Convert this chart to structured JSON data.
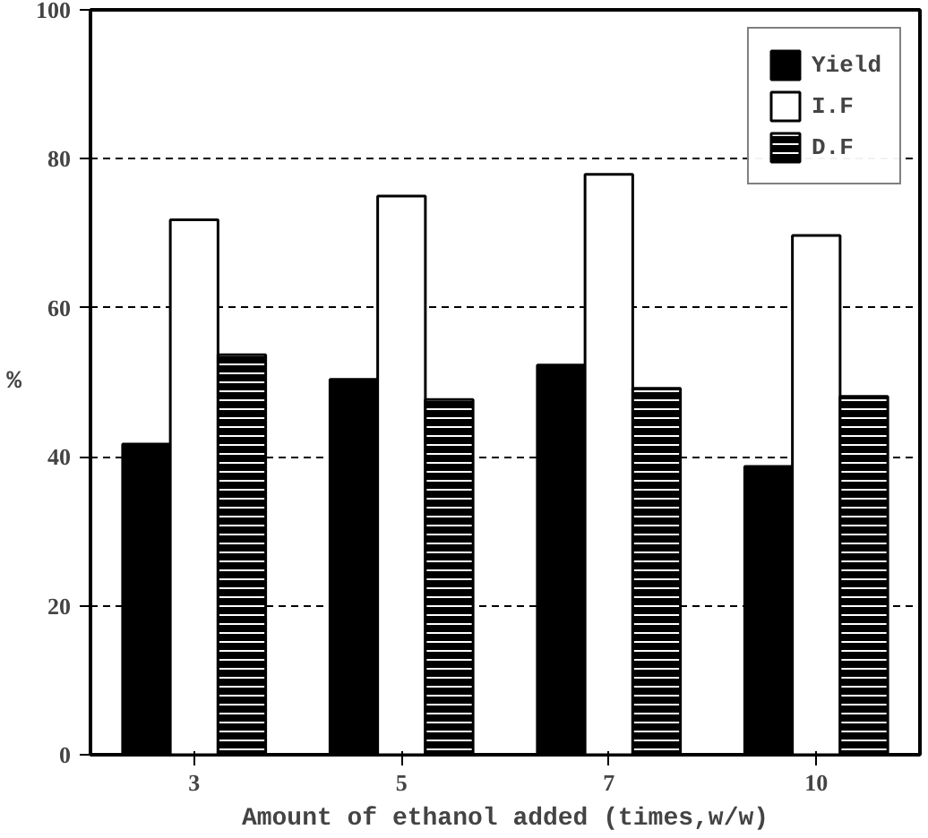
{
  "chart_data": {
    "type": "bar",
    "xlabel": "Amount of ethanol added (times,w/w)",
    "ylabel": "%",
    "categories": [
      "3",
      "5",
      "7",
      "10"
    ],
    "series": [
      {
        "name": "Yield",
        "color": "#000000",
        "values": [
          41.7,
          50.4,
          52.3,
          38.7
        ]
      },
      {
        "name": "I.F",
        "color": "#ffffff",
        "values": [
          71.8,
          75.0,
          77.9,
          69.7
        ]
      },
      {
        "name": "D.F",
        "color": "#000000",
        "values": [
          53.7,
          47.7,
          49.2,
          48.1
        ]
      }
    ],
    "ylim": [
      0,
      100
    ],
    "yticks": [
      0,
      20,
      40,
      60,
      80,
      100
    ],
    "grid": "y",
    "legend": "top right"
  }
}
